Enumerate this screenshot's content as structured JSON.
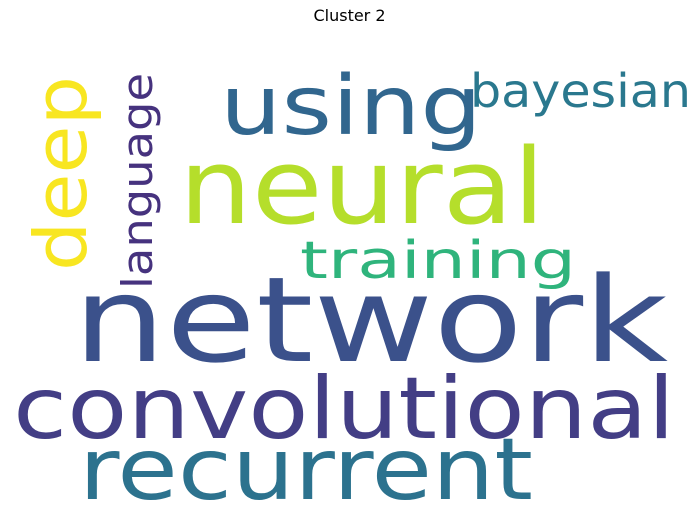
{
  "title": "Cluster 2",
  "words": [
    {
      "text": "network",
      "color": "#3b518b",
      "orientation": "horizontal"
    },
    {
      "text": "neural",
      "color": "#b5de2b",
      "orientation": "horizontal"
    },
    {
      "text": "convolutional",
      "color": "#433e85",
      "orientation": "horizontal"
    },
    {
      "text": "recurrent",
      "color": "#2c728e",
      "orientation": "horizontal"
    },
    {
      "text": "using",
      "color": "#31668e",
      "orientation": "horizontal"
    },
    {
      "text": "deep",
      "color": "#f8e621",
      "orientation": "vertical"
    },
    {
      "text": "training",
      "color": "#2fb47c",
      "orientation": "horizontal"
    },
    {
      "text": "bayesian",
      "color": "#2a788e",
      "orientation": "horizontal"
    },
    {
      "text": "language",
      "color": "#46327e",
      "orientation": "vertical"
    }
  ]
}
